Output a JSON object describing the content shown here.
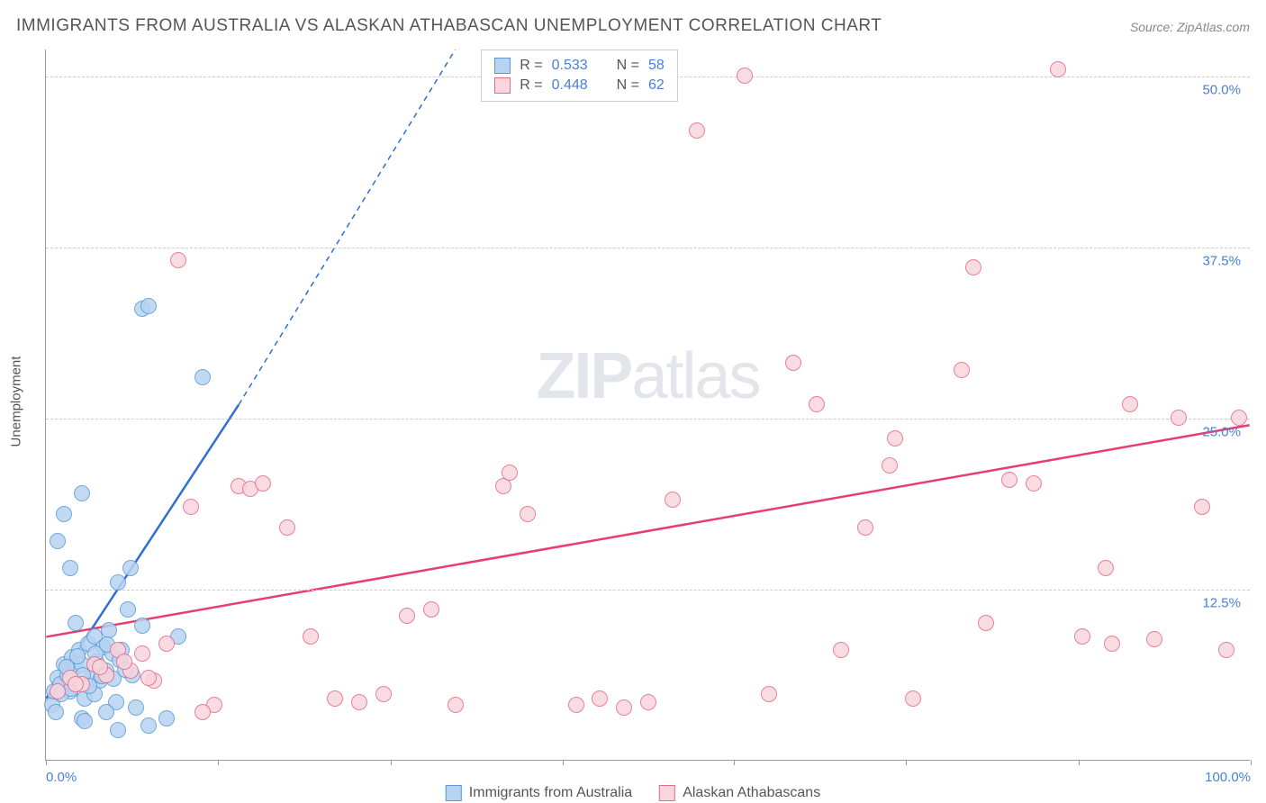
{
  "title": "IMMIGRANTS FROM AUSTRALIA VS ALASKAN ATHABASCAN UNEMPLOYMENT CORRELATION CHART",
  "source_prefix": "Source: ",
  "source_name": "ZipAtlas.com",
  "watermark_bold": "ZIP",
  "watermark_rest": "atlas",
  "ylabel": "Unemployment",
  "chart": {
    "type": "scatter",
    "xlim": [
      0,
      100
    ],
    "ylim": [
      0,
      52
    ],
    "yticks": [
      12.5,
      25.0,
      37.5,
      50.0
    ],
    "ytick_labels": [
      "12.5%",
      "25.0%",
      "37.5%",
      "50.0%"
    ],
    "xticks": [
      0,
      14.3,
      28.6,
      42.9,
      57.1,
      71.4,
      85.7,
      100
    ],
    "xtick_labels_shown": {
      "0": "0.0%",
      "100": "100.0%"
    },
    "background_color": "#ffffff",
    "grid_color": "#cccccc",
    "axis_color": "#999999",
    "text_color": "#555555",
    "tick_label_color": "#4a7fd6",
    "series": [
      {
        "name": "Immigrants from Australia",
        "label": "Immigrants from Australia",
        "R": 0.533,
        "N": 58,
        "marker_fill": "#b7d3f2",
        "marker_stroke": "#5a9bd5",
        "marker_radius": 9,
        "line_color": "#2e6fd6",
        "line_width": 2.5,
        "trend_solid": {
          "x1": 0,
          "y1": 4.5,
          "x2": 16,
          "y2": 26
        },
        "trend_dash": {
          "x1": 16,
          "y1": 26,
          "x2": 34,
          "y2": 52
        },
        "points": [
          [
            0.5,
            4
          ],
          [
            0.7,
            5
          ],
          [
            1,
            6
          ],
          [
            1.2,
            5.5
          ],
          [
            1.5,
            7
          ],
          [
            1.8,
            6.2
          ],
          [
            2,
            5
          ],
          [
            2.2,
            7.5
          ],
          [
            2.5,
            6.8
          ],
          [
            2.8,
            8
          ],
          [
            3,
            7
          ],
          [
            3.2,
            4.5
          ],
          [
            3.5,
            8.5
          ],
          [
            3.8,
            6
          ],
          [
            4,
            9
          ],
          [
            4.2,
            7.2
          ],
          [
            4.5,
            5.8
          ],
          [
            4.8,
            8.2
          ],
          [
            5,
            6.5
          ],
          [
            5.2,
            9.5
          ],
          [
            5.5,
            7.8
          ],
          [
            5.8,
            4.2
          ],
          [
            6,
            13
          ],
          [
            6.3,
            8
          ],
          [
            6.8,
            11
          ],
          [
            7.2,
            6.2
          ],
          [
            7.5,
            3.8
          ],
          [
            8,
            9.8
          ],
          [
            8.5,
            2.5
          ],
          [
            1,
            16
          ],
          [
            1.5,
            18
          ],
          [
            2,
            14
          ],
          [
            2.5,
            10
          ],
          [
            3,
            3
          ],
          [
            3.2,
            2.8
          ],
          [
            4,
            4.8
          ],
          [
            5,
            3.5
          ],
          [
            6,
            2.2
          ],
          [
            7,
            14
          ],
          [
            3,
            19.5
          ],
          [
            10,
            3
          ],
          [
            11,
            9
          ],
          [
            8,
            33
          ],
          [
            8.5,
            33.2
          ],
          [
            13,
            28
          ],
          [
            0.8,
            3.5
          ],
          [
            1.3,
            4.8
          ],
          [
            1.7,
            6.8
          ],
          [
            2.1,
            5.2
          ],
          [
            2.6,
            7.6
          ],
          [
            3.1,
            6.2
          ],
          [
            3.6,
            5.4
          ],
          [
            4.1,
            7.8
          ],
          [
            4.6,
            6.1
          ],
          [
            5.1,
            8.4
          ],
          [
            5.6,
            5.9
          ],
          [
            6.1,
            7.3
          ],
          [
            6.6,
            6.6
          ]
        ]
      },
      {
        "name": "Alaskan Athabascans",
        "label": "Alaskan Athabascans",
        "R": 0.448,
        "N": 62,
        "marker_fill": "#f9d5dd",
        "marker_stroke": "#e86a8a",
        "marker_radius": 9,
        "line_color": "#e63e6d",
        "line_width": 2.5,
        "trend_solid": {
          "x1": 0,
          "y1": 9,
          "x2": 100,
          "y2": 24.5
        },
        "points": [
          [
            1,
            5
          ],
          [
            2,
            6
          ],
          [
            3,
            5.5
          ],
          [
            4,
            7
          ],
          [
            5,
            6.2
          ],
          [
            6,
            8
          ],
          [
            7,
            6.5
          ],
          [
            8,
            7.8
          ],
          [
            9,
            5.8
          ],
          [
            10,
            8.5
          ],
          [
            11,
            36.5
          ],
          [
            12,
            18.5
          ],
          [
            14,
            4
          ],
          [
            16,
            20
          ],
          [
            17,
            19.8
          ],
          [
            18,
            20.2
          ],
          [
            20,
            17
          ],
          [
            22,
            9
          ],
          [
            24,
            4.5
          ],
          [
            26,
            4.2
          ],
          [
            28,
            4.8
          ],
          [
            30,
            10.5
          ],
          [
            32,
            11
          ],
          [
            34,
            4
          ],
          [
            38,
            20
          ],
          [
            38.5,
            21
          ],
          [
            40,
            18
          ],
          [
            44,
            4
          ],
          [
            46,
            4.5
          ],
          [
            48,
            3.8
          ],
          [
            52,
            19
          ],
          [
            54,
            46
          ],
          [
            58,
            50
          ],
          [
            60,
            4.8
          ],
          [
            62,
            29
          ],
          [
            64,
            26
          ],
          [
            66,
            8
          ],
          [
            68,
            17
          ],
          [
            70,
            21.5
          ],
          [
            70.5,
            23.5
          ],
          [
            72,
            4.5
          ],
          [
            76,
            28.5
          ],
          [
            77,
            36
          ],
          [
            78,
            10
          ],
          [
            80,
            20.5
          ],
          [
            82,
            20.2
          ],
          [
            84,
            50.5
          ],
          [
            86,
            9
          ],
          [
            88,
            14
          ],
          [
            88.5,
            8.5
          ],
          [
            90,
            26
          ],
          [
            92,
            8.8
          ],
          [
            94,
            25
          ],
          [
            96,
            18.5
          ],
          [
            98,
            8
          ],
          [
            99,
            25
          ],
          [
            2.5,
            5.5
          ],
          [
            4.5,
            6.8
          ],
          [
            6.5,
            7.2
          ],
          [
            8.5,
            6
          ],
          [
            13,
            3.5
          ],
          [
            50,
            4.2
          ]
        ]
      }
    ]
  },
  "legend_top": {
    "rows": [
      {
        "swatch_fill": "#b7d3f2",
        "swatch_stroke": "#5a9bd5",
        "r_label": "R =",
        "r_val": "0.533",
        "n_label": "N =",
        "n_val": "58"
      },
      {
        "swatch_fill": "#f9d5dd",
        "swatch_stroke": "#e86a8a",
        "r_label": "R =",
        "r_val": "0.448",
        "n_label": "N =",
        "n_val": "62"
      }
    ]
  },
  "legend_bottom": [
    {
      "swatch_fill": "#b7d3f2",
      "swatch_stroke": "#5a9bd5",
      "label": "Immigrants from Australia"
    },
    {
      "swatch_fill": "#f9d5dd",
      "swatch_stroke": "#e86a8a",
      "label": "Alaskan Athabascans"
    }
  ]
}
